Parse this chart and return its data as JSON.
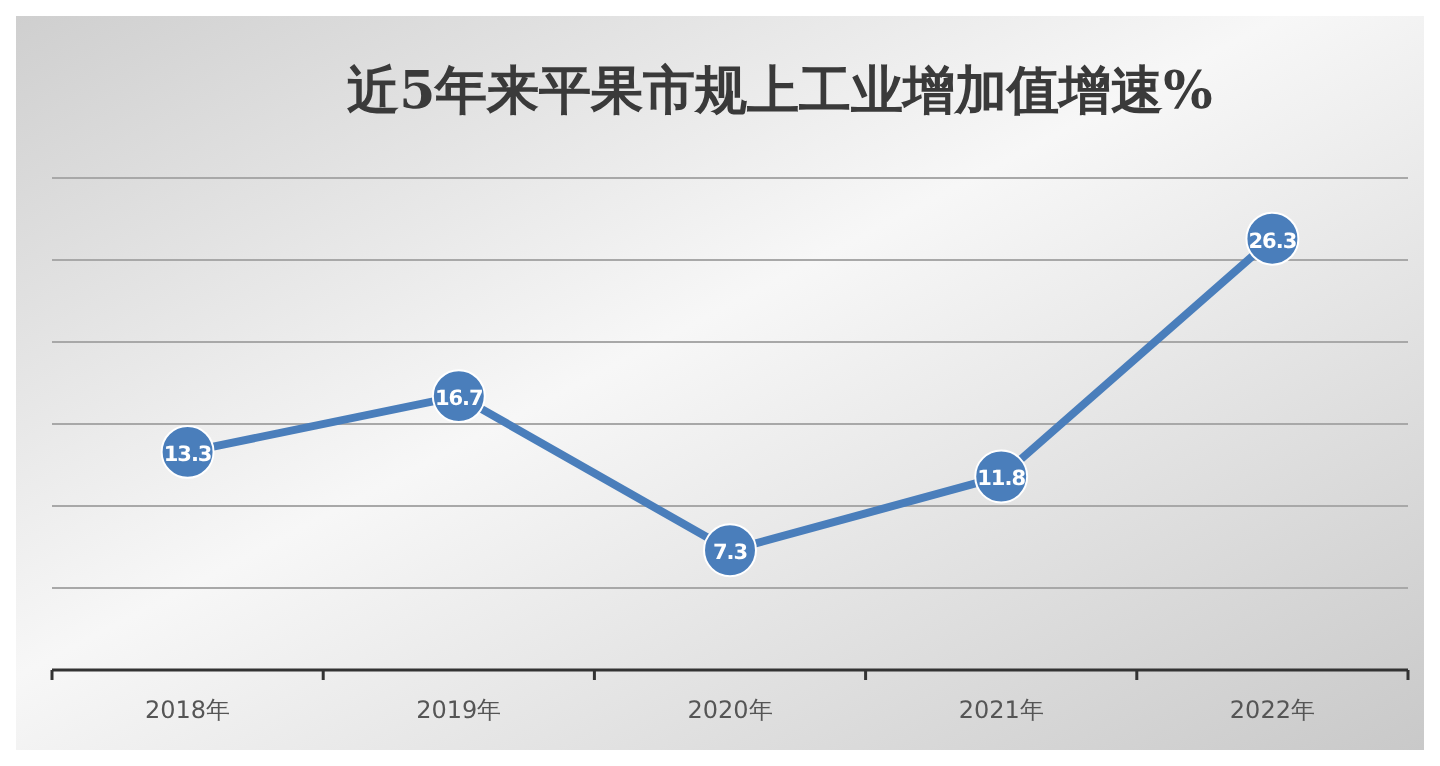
{
  "chart_data": {
    "type": "line",
    "title": "近5年来平果市规上工业增加值增速%",
    "categories": [
      "2018年",
      "2019年",
      "2020年",
      "2021年",
      "2022年"
    ],
    "values": [
      13.3,
      16.7,
      7.3,
      11.8,
      26.3
    ],
    "color": "#4a7ebb",
    "ylim": [
      0,
      30
    ],
    "yticks": [
      {
        "value": 0,
        "label": null
      },
      {
        "value": 5,
        "label": null
      },
      {
        "value": 10,
        "label": null
      },
      {
        "value": 15,
        "label": null
      },
      {
        "value": 20,
        "label": null
      },
      {
        "value": 25,
        "label": null
      },
      {
        "value": 30,
        "label": null
      }
    ],
    "grid": "y",
    "tick_labels": "x",
    "marker": "circle",
    "line_style": "solid",
    "data_labels": true
  }
}
